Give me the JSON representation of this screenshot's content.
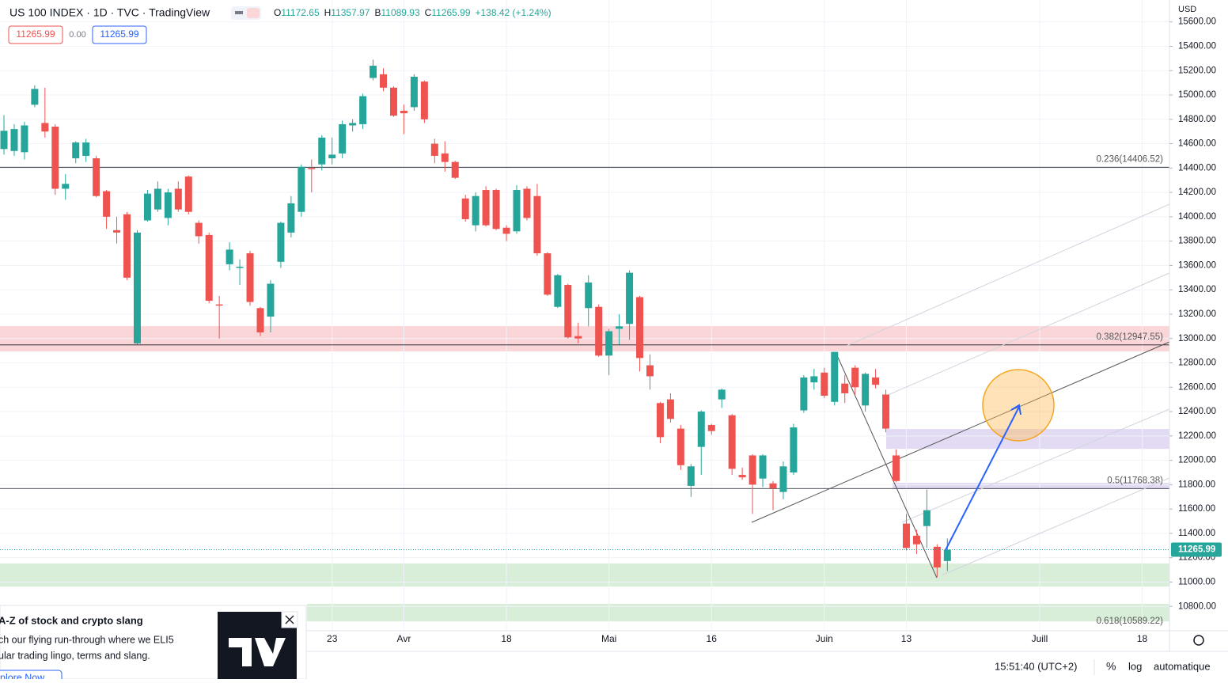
{
  "header": {
    "title": "US 100 INDEX · 1D · TVC · TradingView",
    "ohlc": [
      {
        "key": "O",
        "value": "11172.65"
      },
      {
        "key": "H",
        "value": "11357.97"
      },
      {
        "key": "B",
        "value": "11089.93"
      },
      {
        "key": "C",
        "value": "11265.99"
      }
    ],
    "change": "+138.42 (+1.24%)",
    "boxes": [
      "11265.99",
      "0.00",
      "11265.99"
    ],
    "currency": "USD"
  },
  "chart_data": {
    "type": "candlestick",
    "up_color": "#26a69a",
    "down_color": "#ef5350",
    "categories": [
      null,
      null,
      null,
      null,
      null,
      null,
      null,
      null,
      null,
      null,
      null,
      null,
      null,
      null,
      null,
      null,
      null,
      null,
      null,
      null,
      null,
      null,
      null,
      null,
      null,
      null,
      null,
      null,
      null,
      null,
      null,
      null,
      "23",
      null,
      null,
      null,
      null,
      null,
      null,
      "Avr",
      null,
      null,
      null,
      null,
      null,
      null,
      null,
      null,
      null,
      "18",
      null,
      null,
      null,
      null,
      null,
      null,
      null,
      null,
      null,
      "Mai",
      null,
      null,
      null,
      null,
      null,
      null,
      null,
      null,
      null,
      "16",
      null,
      null,
      null,
      null,
      null,
      null,
      null,
      null,
      null,
      null,
      "Juin",
      null,
      null,
      null,
      null,
      null,
      null,
      null,
      "13",
      null,
      null,
      null,
      null,
      null,
      null,
      null,
      null,
      null,
      null,
      null,
      null,
      "Juill",
      null,
      null,
      null,
      null,
      null,
      null,
      null,
      null,
      null,
      "18"
    ],
    "open": [
      14556,
      14540,
      14530,
      14920,
      14770,
      14740,
      14230,
      14480,
      14500,
      14480,
      14210,
      13890,
      14020,
      12960,
      13970,
      14060,
      13990,
      14230,
      14330,
      13950,
      13850,
      13280,
      13610,
      13580,
      13700,
      13250,
      13180,
      13630,
      13870,
      14040,
      14400,
      14430,
      14480,
      14520,
      14750,
      14760,
      15140,
      15170,
      15060,
      14870,
      14900,
      15110,
      14600,
      14520,
      14450,
      14150,
      13930,
      14220,
      14220,
      13910,
      13880,
      14230,
      14170,
      13700,
      13260,
      13440,
      13020,
      13250,
      13260,
      12860,
      13080,
      13120,
      13340,
      12780,
      12470,
      12500,
      12260,
      11790,
      12110,
      12290,
      12500,
      12370,
      11880,
      12040,
      11850,
      11810,
      11740,
      11900,
      12410,
      12640,
      12720,
      12480,
      12630,
      12760,
      12450,
      12680,
      12540,
      12040,
      11480,
      11380,
      11460,
      11290,
      11172.65,
      null,
      null,
      null,
      null,
      null,
      null,
      null,
      null,
      null,
      null,
      null,
      null,
      null,
      null,
      null,
      null,
      null,
      null,
      null
    ],
    "high": [
      14835,
      14760,
      14780,
      15080,
      15060,
      14760,
      14350,
      14620,
      14640,
      14500,
      14220,
      14000,
      14040,
      13890,
      14220,
      14290,
      14230,
      14290,
      14340,
      13970,
      13870,
      13350,
      13790,
      13650,
      13720,
      13260,
      13480,
      13960,
      14170,
      14430,
      14470,
      14670,
      14650,
      14790,
      14800,
      15010,
      15290,
      15220,
      15070,
      14920,
      15170,
      15120,
      14640,
      14620,
      14460,
      14180,
      14200,
      14250,
      14230,
      13930,
      14260,
      14250,
      14270,
      13710,
      13530,
      13450,
      13130,
      13520,
      13280,
      13080,
      13200,
      13560,
      13350,
      12870,
      12480,
      12550,
      12290,
      11970,
      12410,
      12300,
      12590,
      12380,
      11940,
      12050,
      12050,
      11830,
      11990,
      12300,
      12700,
      12750,
      12760,
      12890,
      12700,
      12780,
      12720,
      12750,
      12580,
      12090,
      11560,
      11430,
      11760,
      11310,
      11357.97,
      null,
      null,
      null,
      null,
      null,
      null,
      null,
      null,
      null,
      null,
      null,
      null,
      null,
      null,
      null,
      null,
      null,
      null,
      null
    ],
    "low": [
      14511,
      14500,
      14470,
      14900,
      14650,
      14180,
      14140,
      14440,
      14450,
      14160,
      13900,
      13780,
      13480,
      12950,
      13960,
      14040,
      13930,
      14040,
      14020,
      13780,
      13290,
      13000,
      13560,
      13440,
      13270,
      13020,
      13050,
      13580,
      13830,
      14000,
      14200,
      14380,
      14430,
      14480,
      14700,
      14720,
      15120,
      15030,
      14820,
      14680,
      14870,
      14770,
      14440,
      14370,
      14310,
      13960,
      13880,
      13920,
      13890,
      13800,
      13860,
      13970,
      13680,
      13350,
      13250,
      13000,
      12960,
      13100,
      12850,
      12700,
      12950,
      12990,
      12730,
      12580,
      12140,
      12310,
      11920,
      11700,
      11880,
      12210,
      12430,
      11880,
      11840,
      11560,
      11780,
      11590,
      11680,
      11880,
      12390,
      12580,
      12510,
      12450,
      12470,
      12540,
      12400,
      12590,
      12230,
      11820,
      11260,
      11230,
      11280,
      11040,
      11089.93,
      null,
      null,
      null,
      null,
      null,
      null,
      null,
      null,
      null,
      null,
      null,
      null,
      null,
      null,
      null,
      null,
      null,
      null,
      null
    ],
    "close": [
      14706,
      14720,
      14750,
      15050,
      14700,
      14230,
      14270,
      14610,
      14610,
      14170,
      14000,
      13870,
      13500,
      13870,
      14190,
      14230,
      14200,
      14060,
      14040,
      13840,
      13310,
      13270,
      13730,
      13590,
      13300,
      13050,
      13450,
      13950,
      14110,
      14410,
      14390,
      14650,
      14510,
      14760,
      14770,
      14990,
      15240,
      15060,
      14830,
      14850,
      15150,
      14800,
      14500,
      14450,
      14320,
      13980,
      14170,
      13930,
      13900,
      13860,
      14220,
      13990,
      13700,
      13360,
      13520,
      13010,
      13000,
      13460,
      12860,
      13060,
      13100,
      13540,
      12840,
      12690,
      12190,
      12340,
      11960,
      11950,
      12400,
      12240,
      12580,
      11930,
      11860,
      11800,
      12040,
      11770,
      11950,
      12270,
      12680,
      12690,
      12530,
      12890,
      12550,
      12600,
      12710,
      12620,
      12260,
      11830,
      11280,
      11310,
      11590,
      11120,
      11265.99,
      null,
      null,
      null,
      null,
      null,
      null,
      null,
      null,
      null,
      null,
      null,
      null,
      null,
      null,
      null,
      null,
      null,
      null,
      null
    ],
    "ylim": [
      10600,
      15780
    ],
    "yticks": [
      {
        "value": 10800,
        "label": "10800.00"
      },
      {
        "value": 11000,
        "label": "11000.00"
      },
      {
        "value": 11200,
        "label": "11200.00"
      },
      {
        "value": 11400,
        "label": "11400.00"
      },
      {
        "value": 11600,
        "label": "11600.00"
      },
      {
        "value": 11800,
        "label": "11800.00"
      },
      {
        "value": 12000,
        "label": "12000.00"
      },
      {
        "value": 12200,
        "label": "12200.00"
      },
      {
        "value": 12400,
        "label": "12400.00"
      },
      {
        "value": 12600,
        "label": "12600.00"
      },
      {
        "value": 12800,
        "label": "12800.00"
      },
      {
        "value": 13000,
        "label": "13000.00"
      },
      {
        "value": 13200,
        "label": "13200.00"
      },
      {
        "value": 13400,
        "label": "13400.00"
      },
      {
        "value": 13600,
        "label": "13600.00"
      },
      {
        "value": 13800,
        "label": "13800.00"
      },
      {
        "value": 14000,
        "label": "14000.00"
      },
      {
        "value": 14200,
        "label": "14200.00"
      },
      {
        "value": 14400,
        "label": "14400.00"
      },
      {
        "value": 14600,
        "label": "14600.00"
      },
      {
        "value": 14800,
        "label": "14800.00"
      },
      {
        "value": 15000,
        "label": "15000.00"
      },
      {
        "value": 15200,
        "label": "15200.00"
      },
      {
        "value": 15400,
        "label": "15400.00"
      },
      {
        "value": 15600,
        "label": "15600.00"
      }
    ],
    "grid": true,
    "last_price": 11265.99,
    "levels": [
      {
        "label": "0.236(14406.52)",
        "value": 14406.52
      },
      {
        "label": "0.382(12947.55)",
        "value": 12947.55
      },
      {
        "label": "0.5(11768.38)",
        "value": 11768.38
      },
      {
        "label": "0.618(10589.22)",
        "value": 10589.22
      }
    ],
    "zones": [
      {
        "low": 12894,
        "high": 13102,
        "color": "#fbd6d9"
      },
      {
        "low": 12094,
        "high": 12257,
        "color": "#e3dbf4"
      },
      {
        "low": 11763,
        "high": 11815,
        "color": "#e3dbf4"
      },
      {
        "low": 10963,
        "high": 11152,
        "color": "#d9eed9"
      },
      {
        "low": 10677,
        "high": 10821,
        "color": "#d9eed9"
      }
    ]
  },
  "footer": {
    "time": "15:51:40 (UTC+2)",
    "percent": "%",
    "log": "log",
    "auto": "automatique"
  },
  "popup": {
    "title": "A-Z of stock and crypto slang",
    "lines": [
      "ch our flying run-through where we ELI5",
      "ular trading lingo, terms and slang."
    ],
    "button": "plore Now"
  }
}
